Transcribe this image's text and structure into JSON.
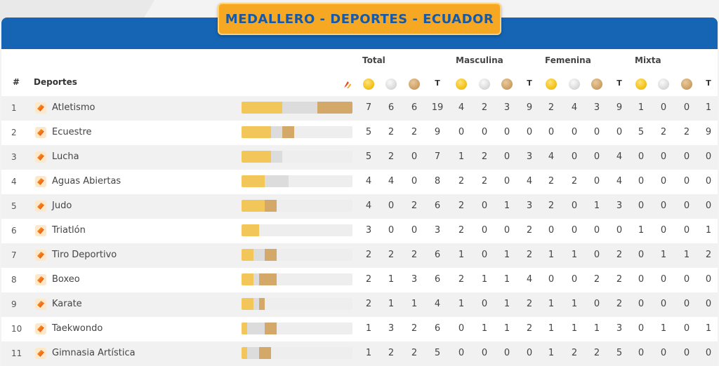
{
  "title": "MEDALLERO - DEPORTES - ECUADOR",
  "groups": [
    "Total",
    "Masculina",
    "Femenina",
    "Mixta"
  ],
  "headers": {
    "rank": "#",
    "sport": "Deportes",
    "total_short": "T"
  },
  "colors": {
    "gold": "#f3c65a",
    "silver": "#dcdcdc",
    "bronze": "#d3a868",
    "header_blue": "#1565b4",
    "title_orange": "#f7a823"
  },
  "rows": [
    {
      "rank": "1",
      "name": "Atletismo",
      "total": [
        7,
        6,
        6,
        19
      ],
      "masc": [
        4,
        2,
        3,
        9
      ],
      "fem": [
        2,
        4,
        3,
        9
      ],
      "mix": [
        1,
        0,
        0,
        1
      ]
    },
    {
      "rank": "2",
      "name": "Ecuestre",
      "total": [
        5,
        2,
        2,
        9
      ],
      "masc": [
        0,
        0,
        0,
        0
      ],
      "fem": [
        0,
        0,
        0,
        0
      ],
      "mix": [
        5,
        2,
        2,
        9
      ]
    },
    {
      "rank": "3",
      "name": "Lucha",
      "total": [
        5,
        2,
        0,
        7
      ],
      "masc": [
        1,
        2,
        0,
        3
      ],
      "fem": [
        4,
        0,
        0,
        4
      ],
      "mix": [
        0,
        0,
        0,
        0
      ]
    },
    {
      "rank": "4",
      "name": "Aguas Abiertas",
      "total": [
        4,
        4,
        0,
        8
      ],
      "masc": [
        2,
        2,
        0,
        4
      ],
      "fem": [
        2,
        2,
        0,
        4
      ],
      "mix": [
        0,
        0,
        0,
        0
      ]
    },
    {
      "rank": "5",
      "name": "Judo",
      "total": [
        4,
        0,
        2,
        6
      ],
      "masc": [
        2,
        0,
        1,
        3
      ],
      "fem": [
        2,
        0,
        1,
        3
      ],
      "mix": [
        0,
        0,
        0,
        0
      ]
    },
    {
      "rank": "6",
      "name": "Triatlón",
      "total": [
        3,
        0,
        0,
        3
      ],
      "masc": [
        2,
        0,
        0,
        2
      ],
      "fem": [
        0,
        0,
        0,
        0
      ],
      "mix": [
        1,
        0,
        0,
        1
      ]
    },
    {
      "rank": "7",
      "name": "Tiro Deportivo",
      "total": [
        2,
        2,
        2,
        6
      ],
      "masc": [
        1,
        0,
        1,
        2
      ],
      "fem": [
        1,
        1,
        0,
        2
      ],
      "mix": [
        0,
        1,
        1,
        2
      ]
    },
    {
      "rank": "8",
      "name": "Boxeo",
      "total": [
        2,
        1,
        3,
        6
      ],
      "masc": [
        2,
        1,
        1,
        4
      ],
      "fem": [
        0,
        0,
        2,
        2
      ],
      "mix": [
        0,
        0,
        0,
        0
      ]
    },
    {
      "rank": "9",
      "name": "Karate",
      "total": [
        2,
        1,
        1,
        4
      ],
      "masc": [
        1,
        0,
        1,
        2
      ],
      "fem": [
        1,
        1,
        0,
        2
      ],
      "mix": [
        0,
        0,
        0,
        0
      ]
    },
    {
      "rank": "10",
      "name": "Taekwondo",
      "total": [
        1,
        3,
        2,
        6
      ],
      "masc": [
        0,
        1,
        1,
        2
      ],
      "fem": [
        1,
        1,
        1,
        3
      ],
      "mix": [
        0,
        1,
        0,
        1
      ]
    },
    {
      "rank": "11",
      "name": "Gimnasia Artística",
      "total": [
        1,
        2,
        2,
        5
      ],
      "masc": [
        0,
        0,
        0,
        0
      ],
      "fem": [
        1,
        2,
        2,
        5
      ],
      "mix": [
        0,
        0,
        0,
        0
      ]
    }
  ]
}
